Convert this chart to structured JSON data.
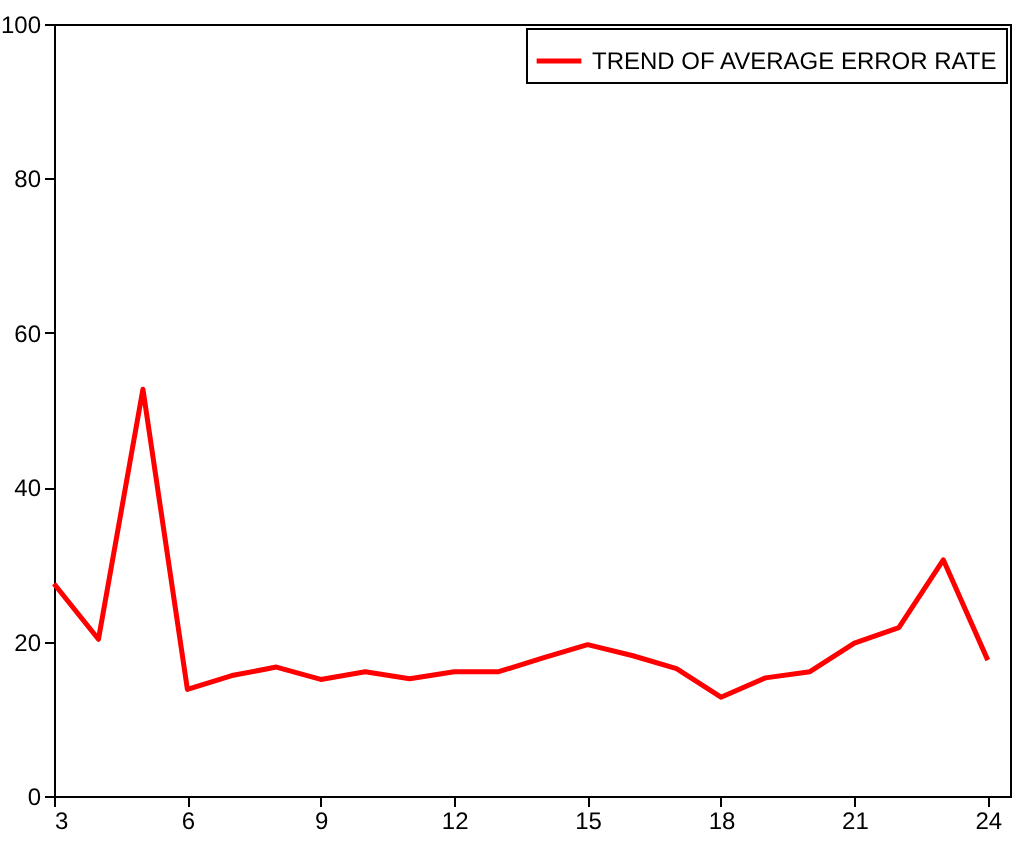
{
  "chart_data": {
    "type": "line",
    "x": [
      3,
      4,
      5,
      6,
      7,
      8,
      9,
      10,
      11,
      12,
      13,
      14,
      15,
      16,
      17,
      18,
      19,
      20,
      21,
      22,
      23,
      24
    ],
    "series": [
      {
        "name": "TREND OF AVERAGE ERROR RATE",
        "color": "#ff0000",
        "values": [
          27.5,
          20.3,
          52.7,
          13.8,
          15.6,
          16.7,
          15.1,
          16.1,
          15.2,
          16.1,
          16.1,
          17.9,
          19.6,
          18.2,
          16.5,
          12.8,
          15.3,
          16.1,
          19.8,
          21.8,
          30.6,
          17.6
        ]
      }
    ],
    "xlim": [
      3,
      24.5
    ],
    "xticks": [
      3,
      6,
      9,
      12,
      15,
      18,
      21,
      24
    ],
    "ylim": [
      0,
      100
    ],
    "yticks": [
      0,
      20,
      40,
      60,
      80,
      100
    ],
    "legend": "top right",
    "grid": false,
    "line_style": "solid"
  }
}
